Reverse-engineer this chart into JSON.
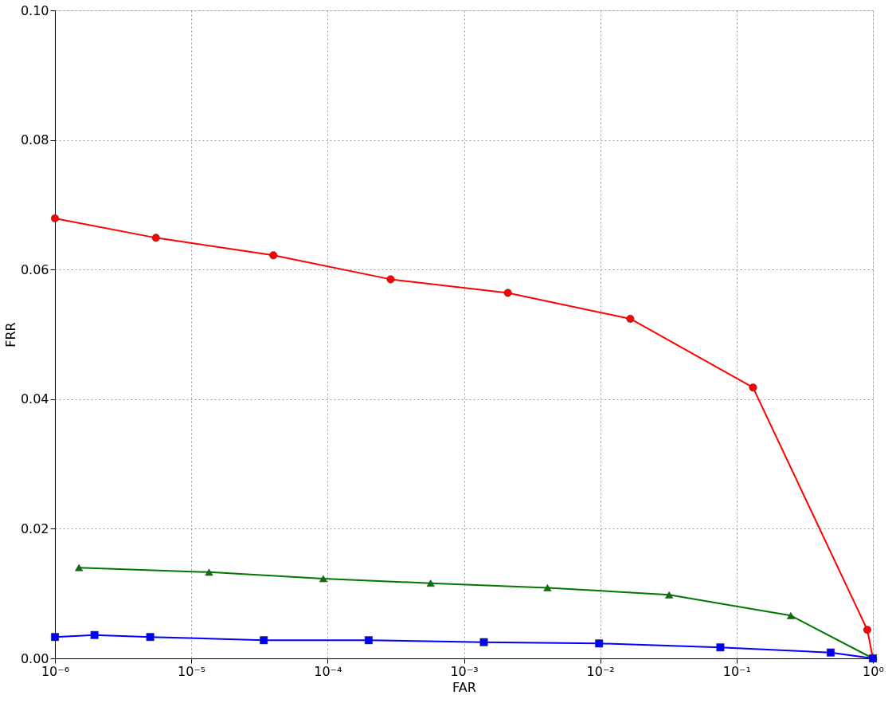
{
  "chart_data": {
    "type": "line",
    "xlabel": "FAR",
    "ylabel": "FRR",
    "log": "x",
    "grid": true,
    "xlim": [
      1e-06,
      1
    ],
    "ylim": [
      0,
      0.1
    ],
    "xticks": [
      {
        "value": 1e-06,
        "label": "10⁻⁶"
      },
      {
        "value": 1e-05,
        "label": "10⁻⁵"
      },
      {
        "value": 0.0001,
        "label": "10⁻⁴"
      },
      {
        "value": 0.001,
        "label": "10⁻³"
      },
      {
        "value": 0.01,
        "label": "10⁻²"
      },
      {
        "value": 0.1,
        "label": "10⁻¹"
      },
      {
        "value": 1,
        "label": "10⁰"
      }
    ],
    "yticks": [
      {
        "value": 0,
        "label": "0.00"
      },
      {
        "value": 0.02,
        "label": "0.02"
      },
      {
        "value": 0.04,
        "label": "0.04"
      },
      {
        "value": 0.06,
        "label": "0.06"
      },
      {
        "value": 0.08,
        "label": "0.08"
      },
      {
        "value": 0.1,
        "label": "0.10"
      }
    ],
    "series": [
      {
        "color": "#ff0000",
        "marker": "circle",
        "x": [
          1e-06,
          5.5e-06,
          4e-05,
          0.00029,
          0.0021,
          0.0166,
          0.132,
          0.91,
          1
        ],
        "values": [
          0.0679,
          0.0649,
          0.0622,
          0.0585,
          0.0564,
          0.0524,
          0.0418,
          0.0044,
          0
        ]
      },
      {
        "color": "#007700",
        "marker": "triangle",
        "x": [
          1.5e-06,
          1.35e-05,
          9.3e-05,
          0.00057,
          0.0041,
          0.032,
          0.25,
          1
        ],
        "values": [
          0.014,
          0.0133,
          0.0123,
          0.0116,
          0.0109,
          0.0098,
          0.0066,
          0
        ]
      },
      {
        "color": "#0000ff",
        "marker": "square",
        "x": [
          1e-06,
          1.95e-06,
          5e-06,
          3.4e-05,
          0.0002,
          0.0014,
          0.0098,
          0.076,
          0.49,
          1
        ],
        "values": [
          0.0033,
          0.0036,
          0.0033,
          0.0028,
          0.0028,
          0.0025,
          0.0023,
          0.0017,
          0.0009,
          0
        ]
      }
    ]
  }
}
